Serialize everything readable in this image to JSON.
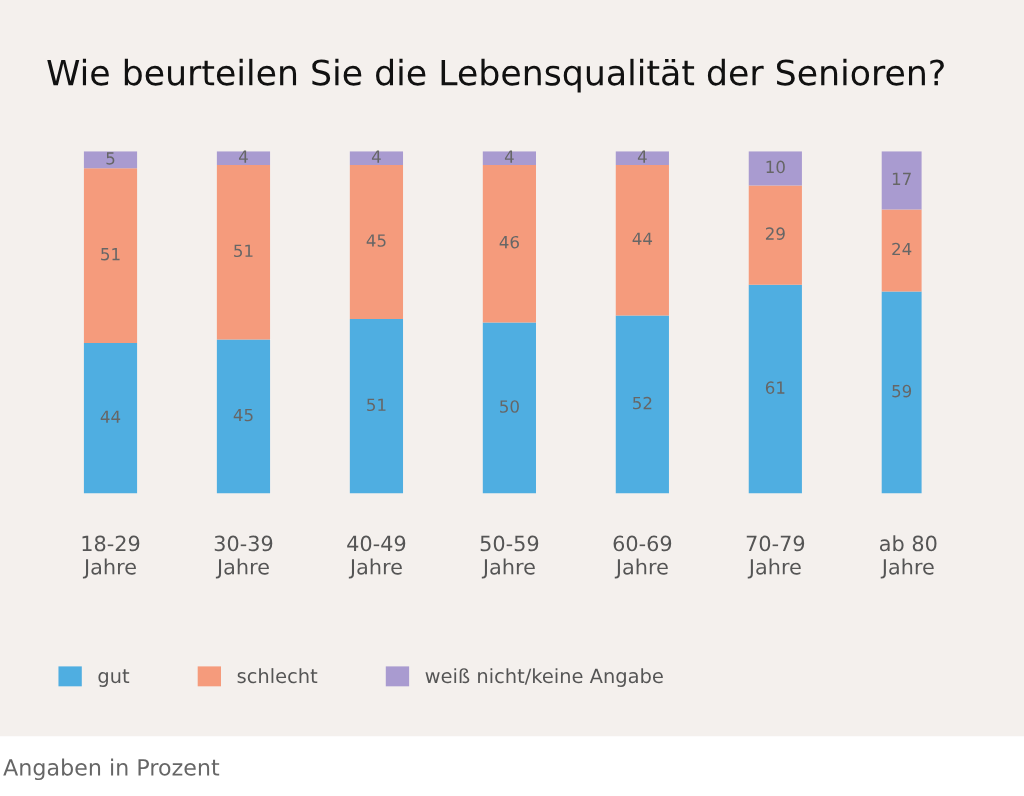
{
  "chart_data": {
    "type": "bar",
    "title": "Wie beurteilen Sie die Lebensqualität der Senioren?",
    "categories": [
      "18-29\nJahre",
      "30-39\nJahre",
      "40-49\nJahre",
      "50-59\nJahre",
      "60-69\nJahre",
      "70-79\nJahre",
      "ab 80\nJahre"
    ],
    "stacked": true,
    "data_labels": true,
    "legend": "bottom left",
    "grid": false,
    "series": [
      {
        "name": "gut",
        "color": "#4faee1",
        "values": [
          44,
          45,
          51,
          50,
          52,
          61,
          59
        ]
      },
      {
        "name": "schlecht",
        "color": "#f59b7c",
        "values": [
          51,
          51,
          45,
          46,
          44,
          29,
          24
        ]
      },
      {
        "name": "weiß nicht/keine Angabe",
        "color": "#a99bd0",
        "values": [
          5,
          4,
          4,
          4,
          4,
          10,
          17
        ]
      }
    ],
    "annotations": [
      "Angaben in Prozent"
    ]
  }
}
